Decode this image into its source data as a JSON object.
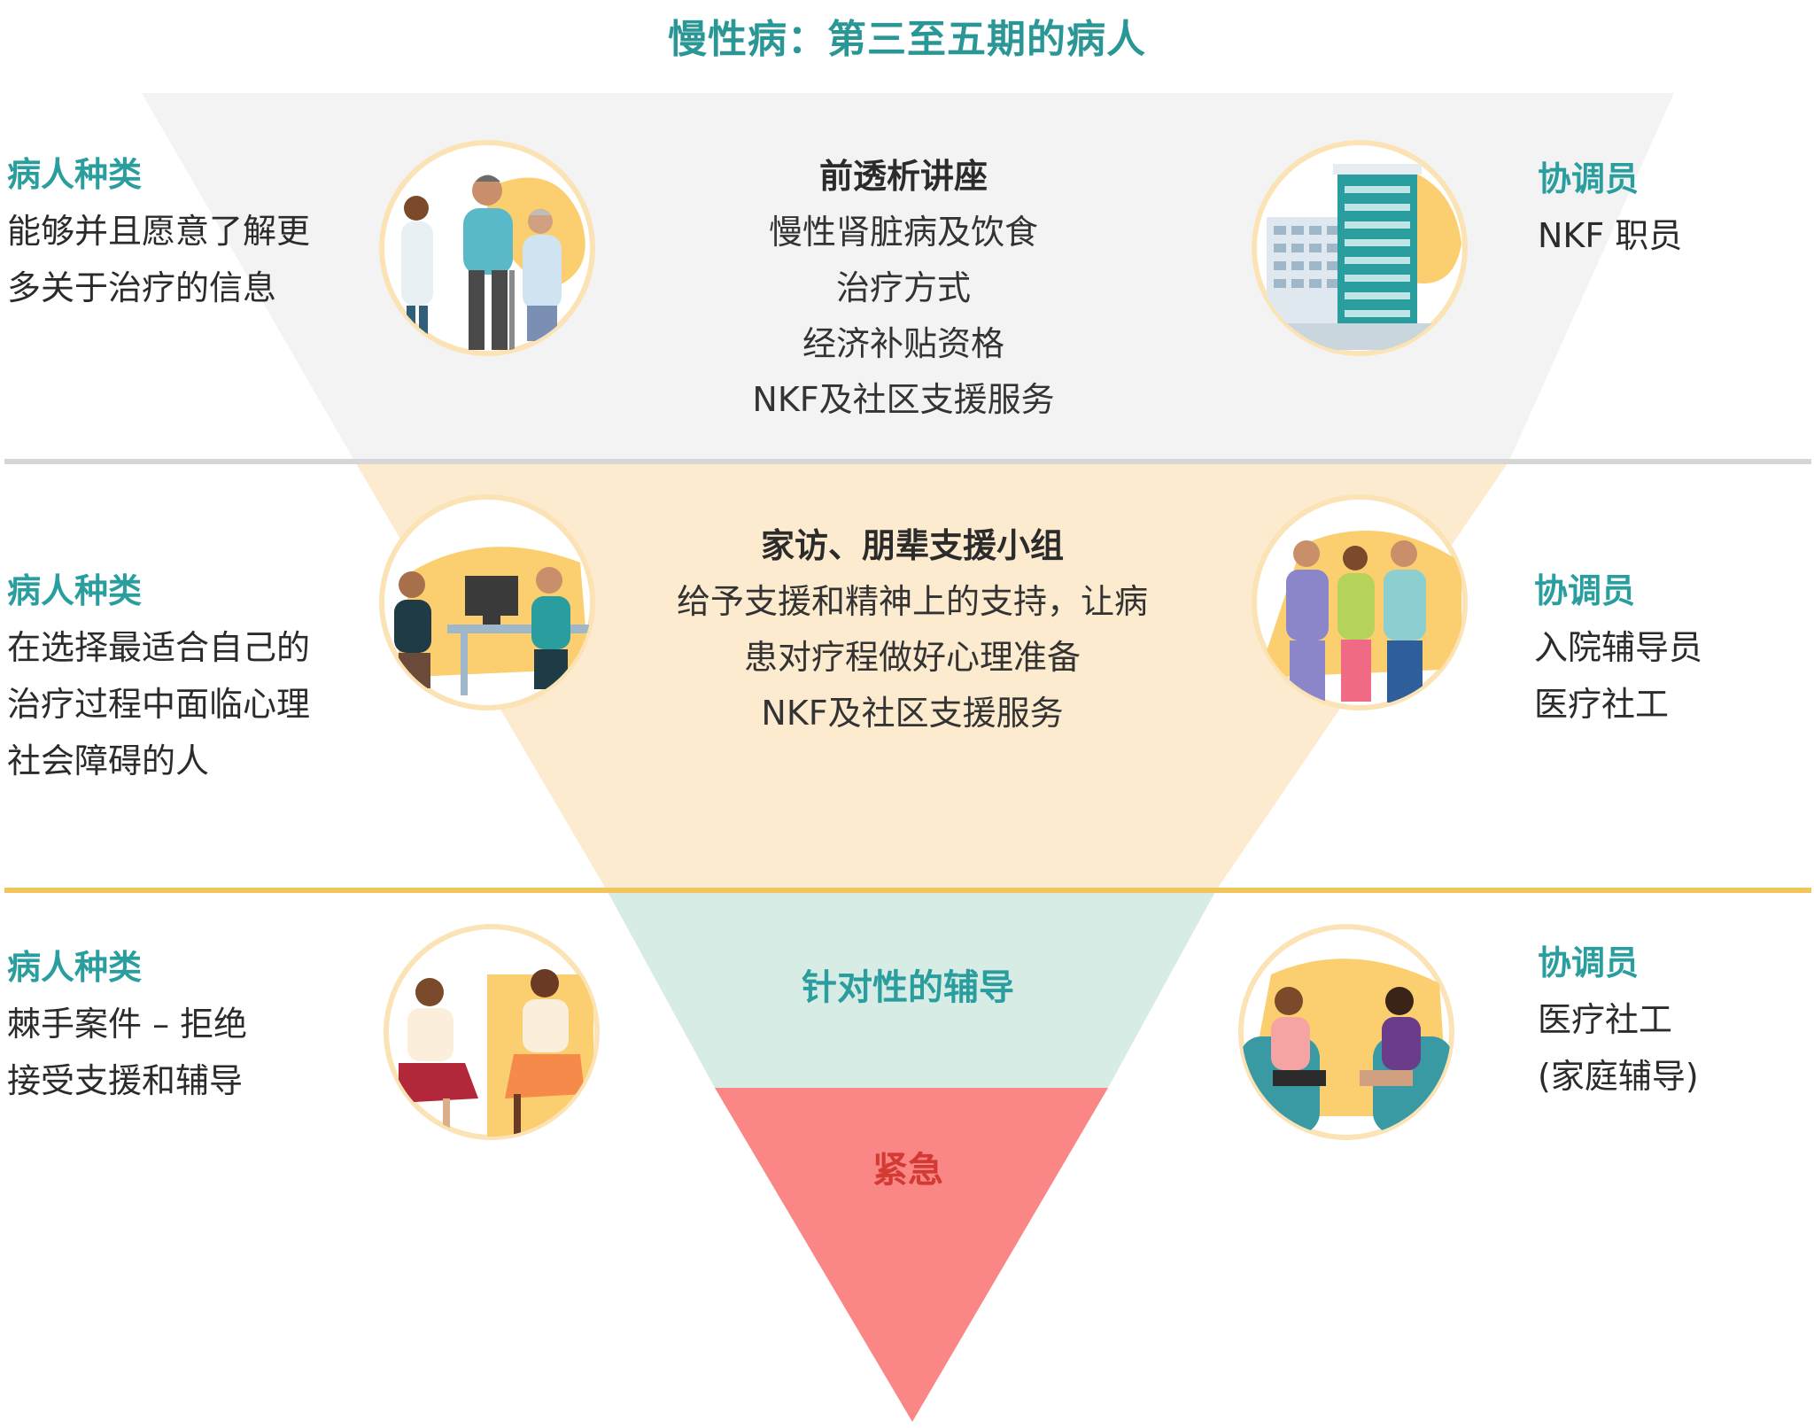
{
  "title": "慢性病：第三至五期的病人",
  "tiers": [
    {
      "left_heading": "病人种类",
      "left_lines": [
        "能够并且愿意了解更",
        "多关于治疗的信息"
      ],
      "center_heading": "前透析讲座",
      "center_lines": [
        "慢性肾脏病及饮食",
        "治疗方式",
        "经济补贴资格",
        "NKF及社区支援服务"
      ],
      "right_heading": "协调员",
      "right_lines": [
        "NKF 职员"
      ],
      "left_icon": "doctor-family-icon",
      "right_icon": "hospital-building-icon"
    },
    {
      "left_heading": "病人种类",
      "left_lines": [
        "在选择最适合自己的",
        "治疗过程中面临心理",
        "社会障碍的人"
      ],
      "center_heading": "家访、朋辈支援小组",
      "center_lines": [
        "给予支援和精神上的支持，让病",
        "患对疗程做好心理准备",
        "NKF及社区支援服务"
      ],
      "right_heading": "协调员",
      "right_lines": [
        "入院辅导员",
        "医疗社工"
      ],
      "left_icon": "counseling-desk-icon",
      "right_icon": "medical-staff-icon"
    },
    {
      "left_heading": "病人种类",
      "left_lines": [
        "棘手案件 – 拒绝",
        "接受支援和辅导"
      ],
      "center_label": "针对性的辅导",
      "right_heading": "协调员",
      "right_lines": [
        "医疗社工",
        "(家庭辅导)"
      ],
      "left_icon": "discussion-icon",
      "right_icon": "family-counseling-icon"
    },
    {
      "center_label": "紧急"
    }
  ],
  "colors": {
    "tier1": "#f3f3f3",
    "tier2": "#fdebd0",
    "tier3": "#d8ece6",
    "tier4": "#fa8785",
    "divider1": "#d6d6d6",
    "divider2": "#f1c55a",
    "teal": "#2a9e9e",
    "urgent_text": "#d43a34",
    "circle_ring": "#fbe3b6"
  }
}
